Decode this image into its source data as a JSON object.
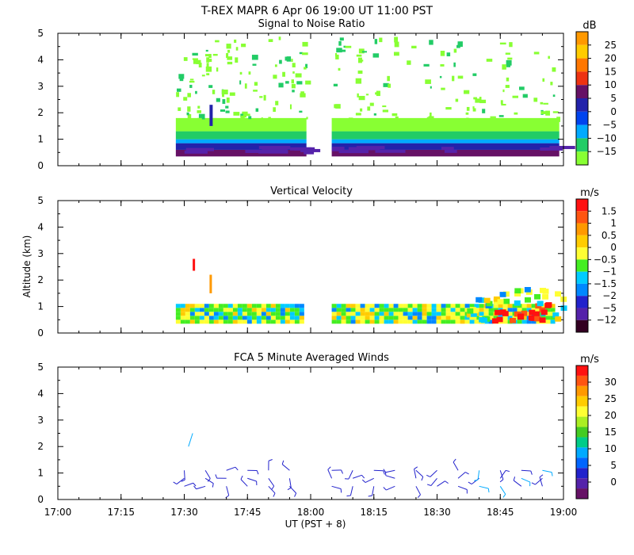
{
  "header": {
    "title": "T-REX   MAPR   6 Apr 06   19:00 UT   11:00   PST"
  },
  "xaxis": {
    "label": "UT  (PST + 8)",
    "ticks": [
      "17:00",
      "17:15",
      "17:30",
      "17:45",
      "18:00",
      "18:15",
      "18:30",
      "18:45",
      "19:00"
    ]
  },
  "yaxis": {
    "label": "Altitude (km)",
    "ticks": [
      "0",
      "1",
      "2",
      "3",
      "4",
      "5"
    ]
  },
  "chart_data": [
    {
      "type": "heatmap",
      "title": "Signal to Noise Ratio",
      "unit": "dB",
      "xlabel": "UT  (PST + 8)",
      "ylabel": "Altitude (km)",
      "xlim": [
        "17:00",
        "19:00"
      ],
      "ylim": [
        0,
        5
      ],
      "data_windows": [
        [
          "17:28",
          "17:59"
        ],
        [
          "18:05",
          "18:59"
        ]
      ],
      "colorbar": {
        "labels": [
          "25",
          "20",
          "15",
          "10",
          "5",
          "0",
          "−5",
          "−10",
          "−15"
        ],
        "colors": [
          "#ff9900",
          "#ffcc00",
          "#ff7700",
          "#ee3311",
          "#661166",
          "#2222aa",
          "#0044ee",
          "#00aaff",
          "#22cc66",
          "#88ff33"
        ]
      },
      "layers": [
        {
          "from_km": 0.35,
          "to_km": 0.6,
          "color": "#661166"
        },
        {
          "from_km": 0.6,
          "to_km": 0.85,
          "color": "#2222aa"
        },
        {
          "from_km": 0.85,
          "to_km": 1.0,
          "color": "#00aaff"
        },
        {
          "from_km": 1.0,
          "to_km": 1.3,
          "color": "#22cc66"
        },
        {
          "from_km": 1.3,
          "to_km": 1.8,
          "color": "#88ff33"
        }
      ]
    },
    {
      "type": "heatmap",
      "title": "Vertical Velocity",
      "unit": "m/s",
      "xlabel": "UT  (PST + 8)",
      "ylabel": "Altitude (km)",
      "xlim": [
        "17:00",
        "19:00"
      ],
      "ylim": [
        0,
        5
      ],
      "data_windows": [
        [
          "17:28",
          "17:59"
        ],
        [
          "18:05",
          "18:59"
        ]
      ],
      "colorbar": {
        "labels": [
          "1.5",
          "1",
          "0.5",
          "0",
          "−0.5",
          "−1",
          "−1.5",
          "−2",
          "−5",
          "−12"
        ],
        "colors": [
          "#ff1111",
          "#ff5511",
          "#ff9900",
          "#ffcc00",
          "#ffff33",
          "#44ee22",
          "#00ccff",
          "#0088ff",
          "#2222cc",
          "#5522aa",
          "#330022"
        ]
      },
      "dominant_band_km": [
        0.35,
        1.1
      ]
    },
    {
      "type": "scatter",
      "title": "FCA 5 Minute Averaged Winds",
      "unit": "m/s",
      "xlabel": "UT  (PST + 8)",
      "ylabel": "Altitude (km)",
      "xlim": [
        "17:00",
        "19:00"
      ],
      "ylim": [
        0,
        5
      ],
      "colorbar": {
        "labels": [
          "30",
          "25",
          "20",
          "15",
          "10",
          "5",
          "0"
        ],
        "colors": [
          "#ff1111",
          "#ff5511",
          "#ff9900",
          "#ffcc00",
          "#ffff33",
          "#aaee22",
          "#44cc22",
          "#00cc88",
          "#00aaff",
          "#0066ff",
          "#2222cc",
          "#5522aa",
          "#661166"
        ]
      },
      "barb_times": [
        "17:30",
        "17:35",
        "17:40",
        "17:45",
        "17:50",
        "17:55",
        "18:05",
        "18:10",
        "18:15",
        "18:20",
        "18:25",
        "18:30",
        "18:35",
        "18:40",
        "18:45",
        "18:50",
        "18:55"
      ],
      "barb_altitudes_km": [
        0.5,
        0.8,
        1.1
      ]
    }
  ]
}
